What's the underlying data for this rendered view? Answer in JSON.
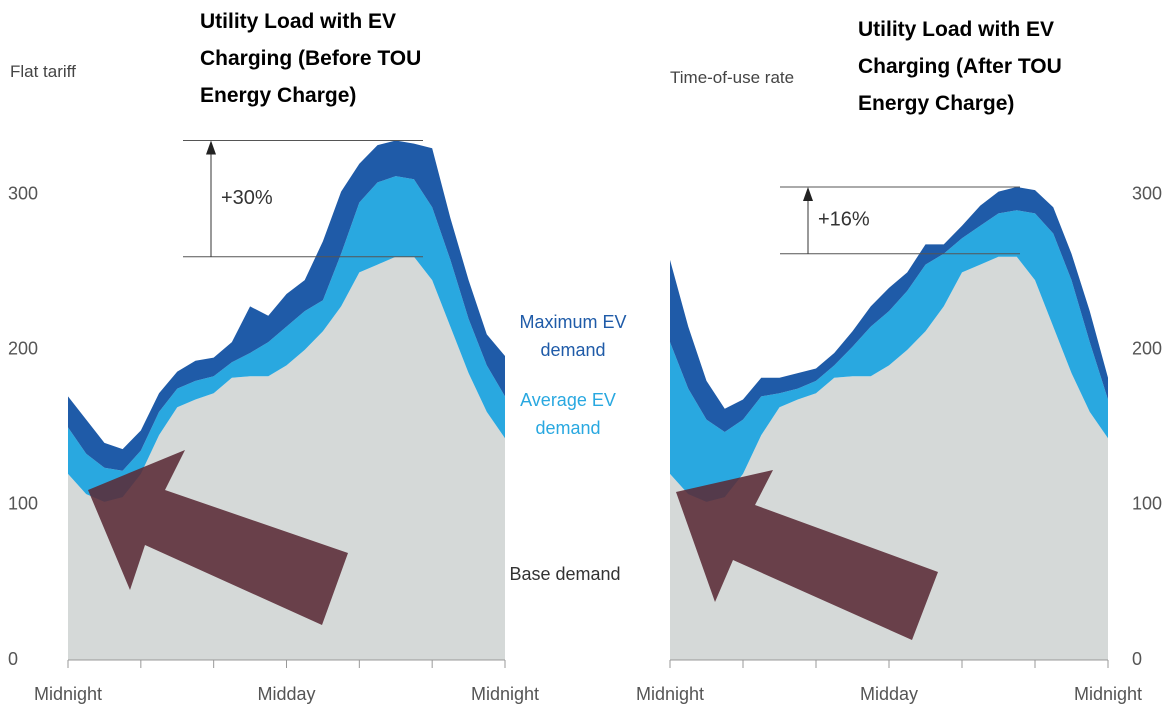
{
  "chart_data": [
    {
      "type": "stacked_area",
      "title": "Utility Load with EV Charging (Before TOU Energy Charge)",
      "subtitle": "Flat tariff",
      "categories": [
        "Midnight",
        null,
        null,
        null,
        null,
        null,
        null,
        null,
        null,
        null,
        null,
        null,
        "Midday",
        null,
        null,
        null,
        null,
        null,
        null,
        null,
        null,
        null,
        null,
        null,
        "Midnight"
      ],
      "series": [
        {
          "name": "Base demand",
          "color": "#d5d9d8",
          "values": [
            120,
            107,
            102,
            105,
            120,
            145,
            163,
            168,
            172,
            182,
            183,
            183,
            190,
            200,
            212,
            228,
            250,
            255,
            260,
            260,
            245,
            215,
            185,
            160,
            143
          ]
        },
        {
          "name": "Average EV demand",
          "color": "#29a8e0",
          "values": [
            30,
            26,
            22,
            17,
            15,
            15,
            12,
            12,
            11,
            10,
            15,
            22,
            25,
            25,
            20,
            34,
            45,
            53,
            52,
            50,
            47,
            43,
            35,
            30,
            27
          ]
        },
        {
          "name": "Maximum EV demand",
          "color": "#1f5ba8",
          "values": [
            20,
            22,
            16,
            14,
            13,
            12,
            11,
            13,
            12,
            13,
            30,
            17,
            21,
            20,
            38,
            40,
            25,
            24,
            23,
            23,
            38,
            27,
            25,
            20,
            26
          ]
        }
      ],
      "ylim": [
        0,
        345
      ],
      "yticks": [
        0,
        100,
        200,
        300
      ],
      "y_axis_side": "left",
      "legend": true,
      "annotation": {
        "text": "+30%",
        "low": 260,
        "high": 335
      }
    },
    {
      "type": "stacked_area",
      "title": "Utility Load with EV Charging (After TOU Energy Charge)",
      "subtitle": "Time-of-use  rate",
      "categories": [
        "Midnight",
        null,
        null,
        null,
        null,
        null,
        null,
        null,
        null,
        null,
        null,
        null,
        "Midday",
        null,
        null,
        null,
        null,
        null,
        null,
        null,
        null,
        null,
        null,
        null,
        "Midnight"
      ],
      "series": [
        {
          "color": "#d5d9d8",
          "values": [
            120,
            107,
            102,
            105,
            120,
            145,
            163,
            168,
            172,
            182,
            183,
            183,
            190,
            200,
            212,
            228,
            250,
            255,
            260,
            260,
            245,
            215,
            185,
            160,
            143
          ]
        },
        {
          "color": "#29a8e0",
          "values": [
            85,
            68,
            53,
            42,
            35,
            25,
            9,
            7,
            8,
            8,
            19,
            32,
            35,
            38,
            43,
            34,
            22,
            25,
            28,
            30,
            43,
            60,
            60,
            45,
            25
          ]
        },
        {
          "color": "#1f5ba8",
          "values": [
            53,
            40,
            25,
            15,
            13,
            12,
            10,
            10,
            8,
            8,
            10,
            13,
            15,
            12,
            13,
            6,
            8,
            13,
            14,
            15,
            15,
            17,
            17,
            20,
            14
          ]
        }
      ],
      "ylim": [
        0,
        345
      ],
      "yticks": [
        0,
        100,
        200,
        300
      ],
      "y_axis_side": "right",
      "legend": false,
      "annotation": {
        "text": "+16%",
        "low": 262,
        "high": 305
      }
    }
  ]
}
